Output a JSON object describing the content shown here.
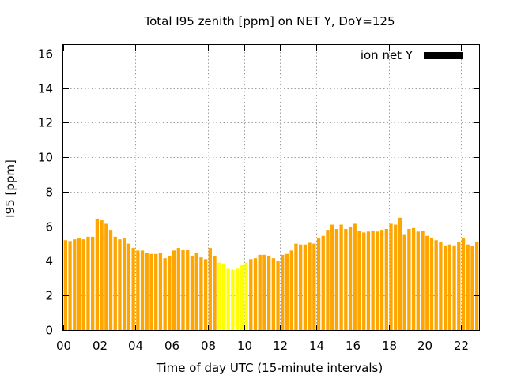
{
  "chart_data": {
    "type": "bar",
    "title": "Total I95 zenith [ppm] on NET Y, DoY=125",
    "xlabel": "Time of day UTC (15-minute intervals)",
    "ylabel": "I95 [ppm]",
    "ylim": [
      0,
      16.5
    ],
    "yticks": [
      0,
      2,
      4,
      6,
      8,
      10,
      12,
      14,
      16
    ],
    "xlim": [
      0,
      23
    ],
    "xticks": [
      0,
      2,
      4,
      6,
      8,
      10,
      12,
      14,
      16,
      18,
      20,
      22
    ],
    "xtick_labels": [
      "00",
      "02",
      "04",
      "06",
      "08",
      "10",
      "12",
      "14",
      "16",
      "18",
      "20",
      "22"
    ],
    "grid": true,
    "legend": {
      "position": "top-right",
      "entries": [
        {
          "label": "ion net Y",
          "color": "#000000"
        }
      ]
    },
    "interval_hours": 0.25,
    "colors": {
      "normal": "#ffa500",
      "highlight": "#ffff00",
      "highlight_range_hours": [
        8.5,
        10.25
      ]
    },
    "values": [
      5.2,
      5.15,
      5.25,
      5.3,
      5.25,
      5.4,
      5.4,
      6.45,
      6.35,
      6.15,
      5.8,
      5.4,
      5.25,
      5.3,
      5.0,
      4.75,
      4.6,
      4.6,
      4.45,
      4.4,
      4.4,
      4.45,
      4.15,
      4.3,
      4.6,
      4.75,
      4.65,
      4.65,
      4.3,
      4.45,
      4.2,
      4.1,
      4.75,
      4.3,
      3.9,
      3.85,
      3.55,
      3.5,
      3.55,
      3.8,
      3.9,
      4.1,
      4.15,
      4.35,
      4.35,
      4.3,
      4.15,
      4.0,
      4.35,
      4.4,
      4.6,
      5.0,
      4.95,
      4.95,
      5.05,
      5.0,
      5.3,
      5.45,
      5.8,
      6.1,
      5.85,
      6.1,
      5.85,
      5.95,
      6.15,
      5.75,
      5.65,
      5.7,
      5.75,
      5.7,
      5.8,
      5.85,
      6.15,
      6.1,
      6.5,
      5.55,
      5.85,
      5.9,
      5.7,
      5.75,
      5.45,
      5.35,
      5.2,
      5.1,
      4.9,
      4.95,
      4.9,
      5.1,
      5.35,
      4.95,
      4.85,
      5.1
    ]
  }
}
